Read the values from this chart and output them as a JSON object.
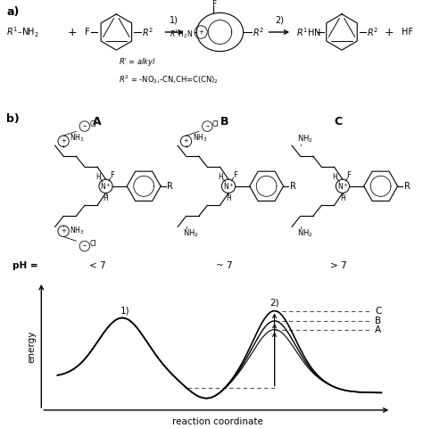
{
  "fig_bg": "#ffffff",
  "label_1": "1)",
  "label_2": "2)",
  "label_C": "C",
  "label_B": "B",
  "label_A": "A",
  "xlabel": "reaction coordinate",
  "ylabel": "energy",
  "pH_label": "pH =",
  "pH_A": "< 7",
  "pH_B": "~ 7",
  "pH_C": "> 7",
  "struct_A": "A",
  "struct_B": "B",
  "struct_C": "C",
  "title_a": "a)",
  "title_b": "b)"
}
